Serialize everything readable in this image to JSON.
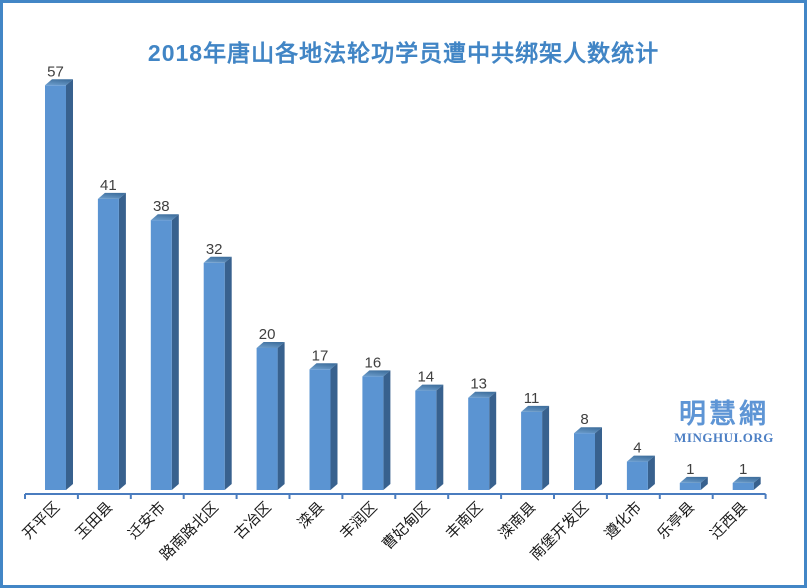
{
  "title": "2018年唐山各地法轮功学员遭中共绑架人数统计",
  "watermark": {
    "logo": "明慧網",
    "url": "MINGHUI.ORG"
  },
  "colors": {
    "title": "#4185c5",
    "page_border": "#4286c6",
    "bar_front": "#5b94d2",
    "bar_side": "#38618e",
    "bar_top_dark": "#41719f",
    "bar_top_light": "#6fa0cf",
    "axis": "#4a7cbf",
    "value_label": "#3f3f3f",
    "category_label": "#1a1a1a",
    "watermark_logo": "#5e95d5",
    "watermark_url": "#4c7fc4",
    "background": "#ffffff"
  },
  "chart_data": {
    "type": "bar",
    "style": "3d-column",
    "title": "2018年唐山各地法轮功学员遭中共绑架人数统计",
    "categories": [
      "开平区",
      "玉田县",
      "迁安市",
      "路南路北区",
      "古冶区",
      "滦县",
      "丰润区",
      "曹妃甸区",
      "丰南区",
      "滦南县",
      "南堡开发区",
      "遵化市",
      "乐亭县",
      "迁西县"
    ],
    "values": [
      57,
      41,
      38,
      32,
      20,
      17,
      16,
      14,
      13,
      11,
      8,
      4,
      1,
      1
    ],
    "xlabel": "",
    "ylabel": "",
    "ylim": [
      0,
      60
    ],
    "grid": false,
    "legend": false,
    "data_labels": true,
    "category_label_rotation_deg": -45
  }
}
